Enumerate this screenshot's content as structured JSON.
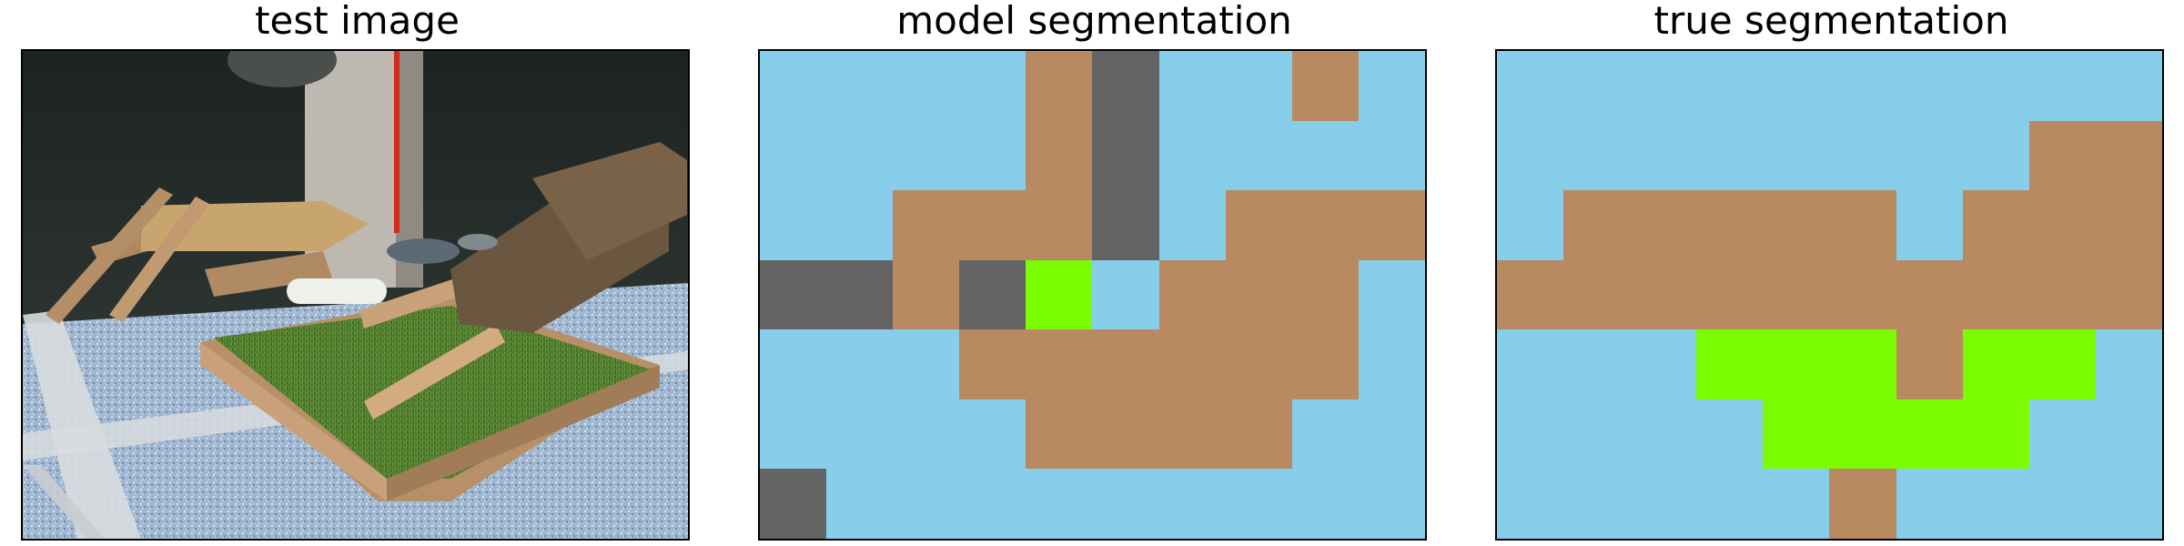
{
  "panels": {
    "test_title": "test image",
    "model_title": "model segmentation",
    "true_title": "true segmentation"
  },
  "legend_colors": {
    "S": "#87ceeb",
    "B": "#b98a61",
    "G": "#7cfc00",
    "D": "#636363"
  },
  "segmentation": {
    "model": [
      [
        "S",
        "S",
        "S",
        "S",
        "B",
        "D",
        "S",
        "S",
        "B",
        "S"
      ],
      [
        "S",
        "S",
        "S",
        "S",
        "B",
        "D",
        "S",
        "S",
        "S",
        "S"
      ],
      [
        "S",
        "S",
        "B",
        "B",
        "B",
        "D",
        "S",
        "B",
        "B",
        "B"
      ],
      [
        "D",
        "D",
        "B",
        "D",
        "G",
        "S",
        "B",
        "B",
        "B",
        "S"
      ],
      [
        "S",
        "S",
        "S",
        "B",
        "B",
        "B",
        "B",
        "B",
        "B",
        "S"
      ],
      [
        "S",
        "S",
        "S",
        "S",
        "B",
        "B",
        "B",
        "B",
        "S",
        "S"
      ],
      [
        "D",
        "S",
        "S",
        "S",
        "S",
        "S",
        "S",
        "S",
        "S",
        "S"
      ]
    ],
    "truth": [
      [
        "S",
        "S",
        "S",
        "S",
        "S",
        "S",
        "S",
        "S",
        "S",
        "S"
      ],
      [
        "S",
        "S",
        "S",
        "S",
        "S",
        "S",
        "S",
        "S",
        "B",
        "B"
      ],
      [
        "S",
        "B",
        "B",
        "B",
        "B",
        "B",
        "S",
        "B",
        "B",
        "B"
      ],
      [
        "B",
        "B",
        "B",
        "B",
        "B",
        "B",
        "B",
        "B",
        "B",
        "B"
      ],
      [
        "S",
        "S",
        "S",
        "G",
        "G",
        "G",
        "B",
        "G",
        "G",
        "S"
      ],
      [
        "S",
        "S",
        "S",
        "S",
        "G",
        "G",
        "G",
        "G",
        "S",
        "S"
      ],
      [
        "S",
        "S",
        "S",
        "S",
        "S",
        "B",
        "S",
        "S",
        "S",
        "S"
      ]
    ]
  }
}
